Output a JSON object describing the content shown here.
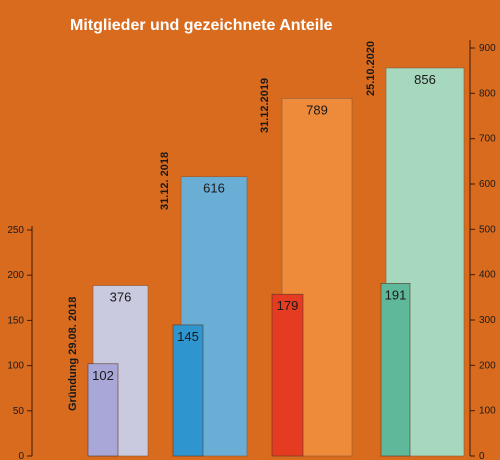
{
  "chart_data": {
    "type": "bar",
    "title": "Mitglieder und gezeichnete Anteile",
    "background": "#D96B1E",
    "categories": [
      "Gründung 29.08. 2018",
      "31.12. 2018",
      "31.12.2019",
      "25.10.2020"
    ],
    "axes": {
      "left": {
        "ylim": [
          0,
          250
        ],
        "ticks": [
          0,
          50,
          100,
          150,
          200,
          250
        ],
        "series": "Mitglieder"
      },
      "right": {
        "ylim": [
          0,
          900
        ],
        "ticks": [
          0,
          100,
          200,
          300,
          400,
          500,
          600,
          700,
          800,
          900
        ],
        "series": "Anteile"
      }
    },
    "series": [
      {
        "key": "Anteile",
        "axis": "right",
        "values": [
          376,
          616,
          789,
          856
        ],
        "colors": [
          "#C9CADF",
          "#6AAED6",
          "#EE8B3A",
          "#A6D8BE"
        ]
      },
      {
        "key": "Mitglieder",
        "axis": "left",
        "values": [
          102,
          145,
          179,
          191
        ],
        "colors": [
          "#A9A6D8",
          "#2F95CF",
          "#E53B20",
          "#5FB89A"
        ]
      }
    ],
    "legend": "none",
    "grid": false
  }
}
